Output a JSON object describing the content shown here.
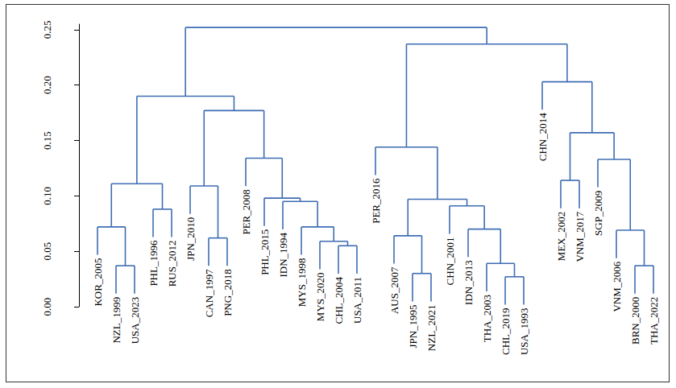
{
  "chart_data": {
    "type": "dendrogram",
    "color": "#3e6db3",
    "ylim": [
      0,
      0.255
    ],
    "yticks": [
      {
        "value": 0,
        "label": "0.00"
      },
      {
        "value": 0.05,
        "label": "0.05"
      },
      {
        "value": 0.1,
        "label": "0.10"
      },
      {
        "value": 0.15,
        "label": "0.15"
      },
      {
        "value": 0.2,
        "label": "0.20"
      },
      {
        "value": 0.25,
        "label": "0.25"
      }
    ],
    "tree": {
      "height": 0.252,
      "children": [
        {
          "height": 0.19,
          "children": [
            {
              "height": 0.111,
              "children": [
                {
                  "height": 0.072,
                  "children": [
                    "KOR_2005",
                    {
                      "height": 0.037,
                      "children": [
                        "NZL_1999",
                        "USA_2023"
                      ]
                    }
                  ]
                },
                {
                  "height": 0.088,
                  "children": [
                    "PHL_1996",
                    "RUS_2012"
                  ]
                }
              ]
            },
            {
              "height": 0.177,
              "children": [
                {
                  "height": 0.109,
                  "children": [
                    "JPN_2010",
                    {
                      "height": 0.062,
                      "children": [
                        "CAN_1997",
                        "PNG_2018"
                      ]
                    }
                  ]
                },
                {
                  "height": 0.134,
                  "children": [
                    "PER_2008",
                    {
                      "height": 0.098,
                      "children": [
                        "PHL_2015",
                        {
                          "height": 0.095,
                          "children": [
                            "IDN_1994",
                            {
                              "height": 0.072,
                              "children": [
                                "MYS_1998",
                                {
                                  "height": 0.059,
                                  "children": [
                                    "MYS_2020",
                                    {
                                      "height": 0.055,
                                      "children": [
                                        "CHL_2004",
                                        "USA_2011"
                                      ]
                                    }
                                  ]
                                }
                              ]
                            }
                          ]
                        }
                      ]
                    }
                  ]
                }
              ]
            }
          ]
        },
        {
          "height": 0.237,
          "children": [
            {
              "height": 0.144,
              "children": [
                "PER_2016",
                {
                  "height": 0.097,
                  "children": [
                    {
                      "height": 0.064,
                      "children": [
                        "AUS_2007",
                        {
                          "height": 0.03,
                          "children": [
                            "JPN_1995",
                            "NZL_2021"
                          ]
                        }
                      ]
                    },
                    {
                      "height": 0.091,
                      "children": [
                        "CHN_2001",
                        {
                          "height": 0.07,
                          "children": [
                            "IDN_2013",
                            {
                              "height": 0.039,
                              "children": [
                                "THA_2003",
                                {
                                  "height": 0.027,
                                  "children": [
                                    "CHL_2019",
                                    "USA_1993"
                                  ]
                                }
                              ]
                            }
                          ]
                        }
                      ]
                    }
                  ]
                }
              ]
            },
            {
              "height": 0.203,
              "children": [
                "CHN_2014",
                {
                  "height": 0.157,
                  "children": [
                    {
                      "height": 0.114,
                      "children": [
                        "MEX_2002",
                        "VNM_2017"
                      ]
                    },
                    {
                      "height": 0.133,
                      "children": [
                        "SGP_2009",
                        {
                          "height": 0.069,
                          "children": [
                            "VNM_2006",
                            {
                              "height": 0.037,
                              "children": [
                                "BRN_2000",
                                "THA_2022"
                              ]
                            }
                          ]
                        }
                      ]
                    }
                  ]
                }
              ]
            }
          ]
        }
      ]
    },
    "tick_labels": "y"
  }
}
